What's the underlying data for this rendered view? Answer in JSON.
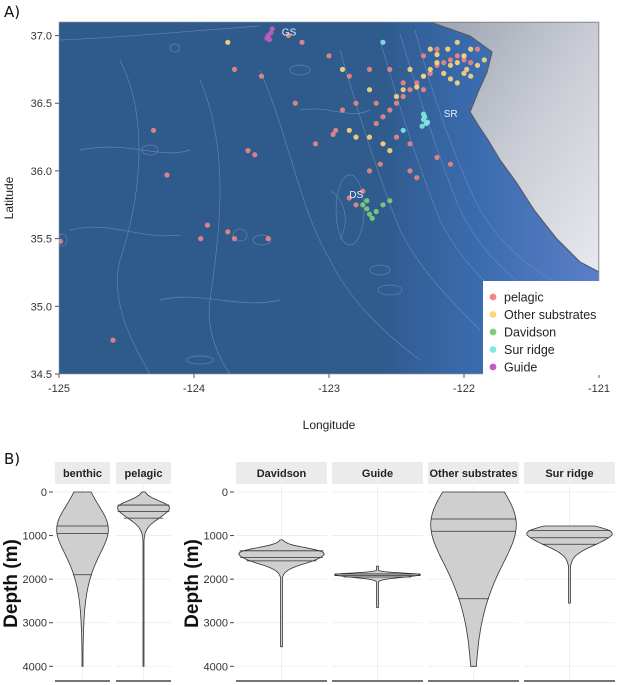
{
  "panel_a": {
    "letter": "A)"
  },
  "panel_b": {
    "letter": "B)"
  },
  "chart_data": [
    {
      "type": "scatter",
      "panel": "A",
      "xlabel": "Longitude",
      "ylabel": "Latitude",
      "xlim": [
        -125,
        -121
      ],
      "ylim": [
        34.5,
        37.1
      ],
      "xticks": [
        "-125",
        "-124",
        "-123",
        "-122",
        "-121"
      ],
      "yticks": [
        "34.5",
        "35.0",
        "35.5",
        "36.0",
        "36.5",
        "37.0"
      ],
      "legend_placement": "bottom-right",
      "site_labels": [
        {
          "text": "GS",
          "x": -123.35,
          "y": 37.0
        },
        {
          "text": "SR",
          "x": -122.15,
          "y": 36.4
        },
        {
          "text": "DS",
          "x": -122.85,
          "y": 35.8
        }
      ],
      "series": [
        {
          "name": "pelagic",
          "color": "#f08585",
          "points": [
            [
              -124.99,
              35.48
            ],
            [
              -124.6,
              34.75
            ],
            [
              -124.3,
              36.3
            ],
            [
              -123.95,
              35.5
            ],
            [
              -123.9,
              35.6
            ],
            [
              -123.75,
              35.55
            ],
            [
              -123.7,
              35.5
            ],
            [
              -123.45,
              35.5
            ],
            [
              -123.6,
              36.15
            ],
            [
              -123.55,
              36.12
            ],
            [
              -124.2,
              35.97
            ],
            [
              -123.5,
              36.7
            ],
            [
              -123.25,
              36.5
            ],
            [
              -123.1,
              36.2
            ],
            [
              -122.97,
              36.27
            ],
            [
              -122.95,
              36.3
            ],
            [
              -122.85,
              35.8
            ],
            [
              -122.8,
              35.75
            ],
            [
              -122.75,
              35.85
            ],
            [
              -122.7,
              36.0
            ],
            [
              -122.62,
              36.05
            ],
            [
              -122.55,
              36.45
            ],
            [
              -122.5,
              36.5
            ],
            [
              -122.45,
              36.55
            ],
            [
              -122.4,
              36.6
            ],
            [
              -122.35,
              36.65
            ],
            [
              -122.3,
              36.7
            ],
            [
              -122.25,
              36.72
            ],
            [
              -122.2,
              36.78
            ],
            [
              -122.15,
              36.8
            ],
            [
              -122.1,
              36.82
            ],
            [
              -122.05,
              36.85
            ],
            [
              -122.0,
              36.82
            ],
            [
              -121.95,
              36.8
            ],
            [
              -122.6,
              36.4
            ],
            [
              -122.65,
              36.35
            ],
            [
              -122.5,
              36.25
            ],
            [
              -122.4,
              36.2
            ],
            [
              -122.35,
              35.95
            ],
            [
              -122.3,
              36.85
            ],
            [
              -122.2,
              36.9
            ],
            [
              -123.0,
              36.85
            ],
            [
              -123.2,
              36.95
            ],
            [
              -123.3,
              37.0
            ],
            [
              -123.7,
              36.75
            ],
            [
              -122.7,
              36.75
            ],
            [
              -122.85,
              36.7
            ],
            [
              -122.45,
              36.65
            ],
            [
              -122.3,
              36.6
            ],
            [
              -122.55,
              36.75
            ],
            [
              -122.9,
              36.45
            ],
            [
              -122.8,
              36.5
            ],
            [
              -122.65,
              36.5
            ],
            [
              -122.2,
              36.1
            ],
            [
              -122.1,
              36.05
            ],
            [
              -122.0,
              36.85
            ],
            [
              -121.9,
              36.9
            ],
            [
              -122.4,
              36.0
            ]
          ]
        },
        {
          "name": "Other substrates",
          "color": "#fdd77c",
          "points": [
            [
              -123.75,
              36.95
            ],
            [
              -122.9,
              36.75
            ],
            [
              -122.85,
              36.3
            ],
            [
              -122.7,
              36.25
            ],
            [
              -122.6,
              36.2
            ],
            [
              -122.55,
              36.15
            ],
            [
              -122.5,
              36.55
            ],
            [
              -122.45,
              36.6
            ],
            [
              -122.35,
              36.62
            ],
            [
              -122.3,
              36.7
            ],
            [
              -122.25,
              36.75
            ],
            [
              -122.2,
              36.8
            ],
            [
              -122.15,
              36.72
            ],
            [
              -122.1,
              36.78
            ],
            [
              -122.05,
              36.8
            ],
            [
              -122.0,
              36.85
            ],
            [
              -121.95,
              36.9
            ],
            [
              -121.9,
              36.78
            ],
            [
              -121.85,
              36.82
            ],
            [
              -122.1,
              36.68
            ],
            [
              -122.0,
              36.72
            ],
            [
              -121.95,
              36.7
            ],
            [
              -122.2,
              36.86
            ],
            [
              -122.12,
              36.9
            ],
            [
              -122.05,
              36.95
            ],
            [
              -121.98,
              36.75
            ],
            [
              -122.25,
              36.9
            ],
            [
              -122.4,
              36.75
            ],
            [
              -122.05,
              36.65
            ],
            [
              -122.7,
              36.6
            ],
            [
              -122.8,
              36.25
            ]
          ]
        },
        {
          "name": "Davidson",
          "color": "#7fcf7a",
          "points": [
            [
              -122.75,
              35.75
            ],
            [
              -122.72,
              35.72
            ],
            [
              -122.7,
              35.68
            ],
            [
              -122.68,
              35.65
            ],
            [
              -122.65,
              35.7
            ],
            [
              -122.72,
              35.78
            ],
            [
              -122.6,
              35.75
            ],
            [
              -122.55,
              35.78
            ]
          ]
        },
        {
          "name": "Sur ridge",
          "color": "#7fe8e2",
          "points": [
            [
              -122.3,
              36.42
            ],
            [
              -122.3,
              36.38
            ],
            [
              -122.28,
              36.35
            ],
            [
              -122.31,
              36.33
            ],
            [
              -122.29,
              36.4
            ],
            [
              -122.27,
              36.36
            ],
            [
              -122.45,
              36.3
            ],
            [
              -122.6,
              36.95
            ]
          ]
        },
        {
          "name": "Guide",
          "color": "#c45bc4",
          "points": [
            [
              -123.45,
              37.0
            ],
            [
              -123.43,
              37.02
            ],
            [
              -123.42,
              37.05
            ],
            [
              -123.46,
              36.98
            ],
            [
              -123.44,
              36.97
            ]
          ]
        }
      ]
    },
    {
      "type": "violin",
      "panel": "B-left",
      "ylabel": "Depth (m)",
      "ylim": [
        0,
        4200
      ],
      "yticks": [
        "0",
        "1000",
        "2000",
        "3000",
        "4000"
      ],
      "facets": [
        {
          "label": "benthic",
          "quantiles": [
            780,
            950,
            1900
          ],
          "max_width_at": 900,
          "range": [
            0,
            4000
          ]
        },
        {
          "label": "pelagic",
          "quantiles": [
            300,
            450,
            600
          ],
          "max_width_at": 450,
          "range": [
            0,
            4000
          ]
        }
      ]
    },
    {
      "type": "violin",
      "panel": "B-right",
      "ylabel": "Depth (m)",
      "ylim": [
        0,
        4200
      ],
      "yticks": [
        "0",
        "1000",
        "2000",
        "3000",
        "4000"
      ],
      "facets": [
        {
          "label": "Davidson",
          "quantiles": [
            1350,
            1500,
            1580
          ],
          "range": [
            1100,
            3550
          ]
        },
        {
          "label": "Guide",
          "quantiles": [
            1880,
            1920,
            1950
          ],
          "range": [
            1700,
            2650
          ]
        },
        {
          "label": "Other substrates",
          "quantiles": [
            620,
            900,
            2450
          ],
          "range": [
            0,
            4000
          ]
        },
        {
          "label": "Sur ridge",
          "quantiles": [
            880,
            1050,
            1200
          ],
          "range": [
            780,
            2550
          ]
        }
      ]
    }
  ]
}
